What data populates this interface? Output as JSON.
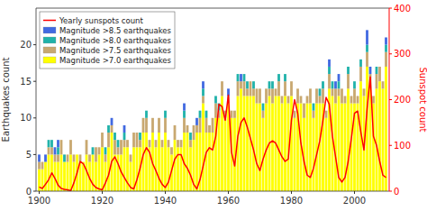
{
  "chart_data": {
    "type": "bar",
    "stacked": true,
    "legend": "upper-left",
    "y_label": "Earthquakes count",
    "y2_label": "Sunspot count",
    "x": [
      1900,
      1901,
      1902,
      1903,
      1904,
      1905,
      1906,
      1907,
      1908,
      1909,
      1910,
      1911,
      1912,
      1913,
      1914,
      1915,
      1916,
      1917,
      1918,
      1919,
      1920,
      1921,
      1922,
      1923,
      1924,
      1925,
      1926,
      1927,
      1928,
      1929,
      1930,
      1931,
      1932,
      1933,
      1934,
      1935,
      1936,
      1937,
      1938,
      1939,
      1940,
      1941,
      1942,
      1943,
      1944,
      1945,
      1946,
      1947,
      1948,
      1949,
      1950,
      1951,
      1952,
      1953,
      1954,
      1955,
      1956,
      1957,
      1958,
      1959,
      1960,
      1961,
      1962,
      1963,
      1964,
      1965,
      1966,
      1967,
      1968,
      1969,
      1970,
      1971,
      1972,
      1973,
      1974,
      1975,
      1976,
      1977,
      1978,
      1979,
      1980,
      1981,
      1982,
      1983,
      1984,
      1985,
      1986,
      1987,
      1988,
      1989,
      1990,
      1991,
      1992,
      1993,
      1994,
      1995,
      1996,
      1997,
      1998,
      1999,
      2000,
      2001,
      2002,
      2003,
      2004,
      2005,
      2006,
      2007,
      2008,
      2009,
      2010
    ],
    "xlim": [
      1899,
      2011
    ],
    "xticks": [
      1900,
      1920,
      1940,
      1960,
      1980,
      2000
    ],
    "ylim": [
      0,
      25
    ],
    "yticks": [
      0,
      5,
      10,
      15,
      20
    ],
    "y2lim": [
      0,
      400
    ],
    "y2ticks": [
      0,
      100,
      200,
      300,
      400
    ],
    "series": [
      {
        "name": "Magnitude >7.0 earthquakes",
        "type": "bar",
        "color": "#FFFF00",
        "values": [
          3,
          3,
          4,
          5,
          5,
          4,
          4,
          5,
          4,
          4,
          5,
          4,
          5,
          4,
          4,
          5,
          4,
          5,
          4,
          5,
          6,
          4,
          6,
          8,
          5,
          5,
          5,
          6,
          6,
          4,
          6,
          6,
          6,
          8,
          8,
          6,
          8,
          6,
          8,
          6,
          8,
          6,
          5,
          7,
          6,
          6,
          8,
          8,
          6,
          7,
          8,
          8,
          12,
          8,
          8,
          8,
          10,
          10,
          13,
          10,
          12,
          10,
          10,
          13,
          14,
          13,
          13,
          13,
          13,
          12,
          12,
          10,
          12,
          13,
          12,
          13,
          13,
          12,
          13,
          12,
          13,
          10,
          12,
          12,
          10,
          12,
          12,
          10,
          12,
          12,
          12,
          10,
          14,
          13,
          12,
          13,
          12,
          12,
          14,
          12,
          12,
          12,
          15,
          13,
          17,
          14,
          12,
          14,
          15,
          14,
          17
        ]
      },
      {
        "name": "Magnitude >7.5 earthquakes",
        "type": "bar",
        "color": "#C8A870",
        "values": [
          1,
          1,
          0,
          1,
          1,
          1,
          1,
          2,
          0,
          1,
          2,
          1,
          0,
          1,
          0,
          2,
          1,
          0,
          2,
          1,
          2,
          1,
          2,
          1,
          2,
          1,
          2,
          1,
          1,
          1,
          2,
          2,
          1,
          2,
          2,
          1,
          2,
          1,
          2,
          1,
          2,
          1,
          1,
          2,
          1,
          1,
          2,
          1,
          1,
          2,
          1,
          2,
          1,
          2,
          1,
          2,
          2,
          1,
          2,
          1,
          1,
          1,
          1,
          2,
          1,
          2,
          1,
          2,
          1,
          2,
          2,
          1,
          2,
          1,
          2,
          1,
          2,
          1,
          2,
          1,
          2,
          1,
          2,
          1,
          2,
          1,
          2,
          1,
          2,
          1,
          2,
          1,
          2,
          1,
          2,
          1,
          2,
          1,
          2,
          1,
          2,
          1,
          2,
          1,
          2,
          2,
          1,
          2,
          2,
          1,
          2
        ]
      },
      {
        "name": "Magnitude >8.0 earthquakes",
        "type": "bar",
        "color": "#20B2AA",
        "values": [
          0,
          0,
          0,
          1,
          1,
          0,
          1,
          0,
          1,
          0,
          0,
          0,
          0,
          0,
          0,
          0,
          0,
          1,
          0,
          0,
          0,
          1,
          1,
          0,
          1,
          1,
          0,
          1,
          0,
          0,
          0,
          0,
          1,
          0,
          1,
          0,
          0,
          0,
          0,
          0,
          1,
          0,
          0,
          0,
          0,
          0,
          1,
          0,
          1,
          0,
          0,
          1,
          1,
          1,
          0,
          0,
          1,
          1,
          0,
          0,
          0,
          0,
          0,
          1,
          0,
          1,
          1,
          0,
          1,
          0,
          0,
          1,
          0,
          1,
          1,
          0,
          1,
          0,
          1,
          0,
          0,
          0,
          0,
          0,
          0,
          0,
          0,
          1,
          0,
          1,
          1,
          0,
          1,
          1,
          0,
          1,
          0,
          0,
          1,
          0,
          1,
          0,
          1,
          0,
          1,
          0,
          0,
          1,
          0,
          0,
          1
        ]
      },
      {
        "name": "Magnitude >8.5 earthquakes",
        "type": "bar",
        "color": "#4169E1",
        "values": [
          1,
          0,
          1,
          0,
          0,
          1,
          1,
          0,
          0,
          0,
          0,
          0,
          0,
          0,
          0,
          0,
          0,
          0,
          0,
          0,
          0,
          0,
          0,
          1,
          0,
          0,
          0,
          1,
          0,
          0,
          0,
          0,
          0,
          0,
          0,
          0,
          0,
          0,
          0,
          0,
          0,
          0,
          0,
          0,
          0,
          0,
          1,
          0,
          0,
          0,
          1,
          0,
          1,
          0,
          0,
          0,
          0,
          0,
          0,
          0,
          1,
          0,
          0,
          0,
          1,
          0,
          0,
          0,
          0,
          0,
          0,
          0,
          0,
          0,
          0,
          0,
          0,
          0,
          0,
          0,
          0,
          0,
          0,
          0,
          0,
          0,
          0,
          0,
          0,
          0,
          0,
          0,
          1,
          0,
          1,
          1,
          0,
          0,
          0,
          0,
          0,
          0,
          0,
          0,
          2,
          1,
          0,
          0,
          0,
          0,
          1
        ]
      },
      {
        "name": "Yearly sunspots count",
        "type": "line",
        "axis": "y2",
        "color": "#FF0000",
        "values": [
          9,
          6,
          15,
          25,
          40,
          28,
          13,
          6,
          4,
          3,
          1,
          18,
          40,
          65,
          60,
          45,
          28,
          15,
          8,
          5,
          3,
          18,
          35,
          65,
          75,
          60,
          42,
          30,
          18,
          8,
          5,
          25,
          50,
          80,
          95,
          85,
          60,
          45,
          28,
          15,
          8,
          20,
          45,
          70,
          80,
          80,
          60,
          50,
          35,
          15,
          5,
          25,
          55,
          85,
          95,
          90,
          120,
          190,
          185,
          155,
          210,
          85,
          55,
          120,
          150,
          160,
          140,
          115,
          90,
          60,
          45,
          70,
          90,
          105,
          110,
          105,
          90,
          75,
          65,
          70,
          155,
          200,
          170,
          105,
          65,
          35,
          30,
          50,
          80,
          110,
          155,
          205,
          190,
          120,
          75,
          30,
          20,
          30,
          65,
          115,
          170,
          175,
          130,
          90,
          180,
          250,
          120,
          100,
          65,
          35,
          30
        ]
      }
    ]
  }
}
